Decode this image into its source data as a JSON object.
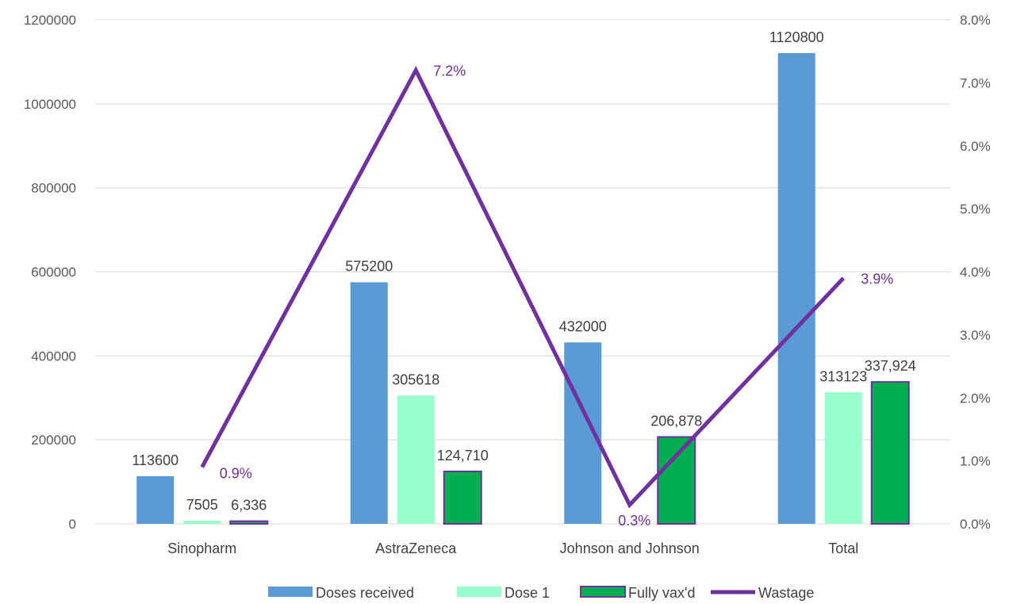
{
  "chart_data": {
    "type": "bar",
    "categories": [
      "Sinopharm",
      "AstraZeneca",
      "Johnson and Johnson",
      "Total"
    ],
    "series": [
      {
        "name": "Doses received",
        "values": [
          113600,
          575200,
          432000,
          1120800
        ],
        "labels": [
          "113600",
          "575200",
          "432000",
          "1120800"
        ],
        "color": "#5B9BD5"
      },
      {
        "name": "Dose 1",
        "values": [
          7505,
          305618,
          0,
          313123
        ],
        "labels": [
          "7505",
          "305618",
          "",
          "313123"
        ],
        "color": "#99FFCC"
      },
      {
        "name": "Fully vax'd",
        "values": [
          6336,
          124710,
          206878,
          337924
        ],
        "labels": [
          "6,336",
          "124,710",
          "206,878",
          "337,924"
        ],
        "color": "#00B050",
        "border": "#7030A0"
      }
    ],
    "line_series": {
      "name": "Wastage",
      "type": "line",
      "axis": "secondary",
      "values": [
        0.009,
        0.072,
        0.003,
        0.039
      ],
      "labels": [
        "0.9%",
        "7.2%",
        "0.3%",
        "3.9%"
      ],
      "color": "#7030A0"
    },
    "y_axis": {
      "min": 0,
      "max": 1200000,
      "ticks": [
        0,
        200000,
        400000,
        600000,
        800000,
        1000000,
        1200000
      ],
      "tick_labels": [
        "0",
        "200000",
        "400000",
        "600000",
        "800000",
        "1000000",
        "1200000"
      ]
    },
    "y2_axis": {
      "min": 0,
      "max": 0.08,
      "ticks": [
        0,
        0.01,
        0.02,
        0.03,
        0.04,
        0.05,
        0.06,
        0.07,
        0.08
      ],
      "tick_labels": [
        "0.0%",
        "1.0%",
        "2.0%",
        "3.0%",
        "4.0%",
        "5.0%",
        "6.0%",
        "7.0%",
        "8.0%"
      ]
    },
    "grid": true,
    "legend": "bottom",
    "title": "",
    "xlabel": "",
    "ylabel": ""
  }
}
